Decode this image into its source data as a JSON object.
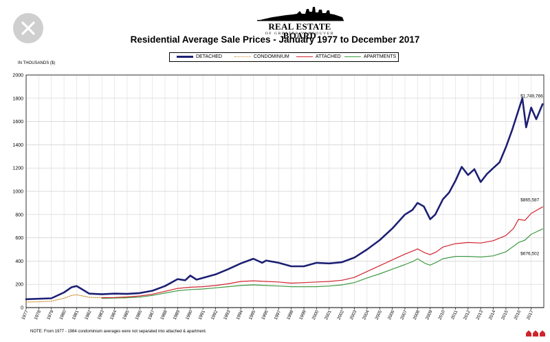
{
  "logo": {
    "name": "REAL ESTATE BOARD",
    "subtitle": "OF GREATER VANCOUVER"
  },
  "chart_data": {
    "type": "line",
    "title": "Residential Average Sale Prices  -  January 1977 to December 2017",
    "units_label": "IN THOUSANDS ($)",
    "note": "NOTE:  From 1977 - 1984 condominium averages were not separated into attached & apartment.",
    "ylim": [
      0,
      2000
    ],
    "yticks": [
      0,
      200,
      400,
      600,
      800,
      1000,
      1200,
      1400,
      1600,
      1800,
      2000
    ],
    "xlim": [
      1977,
      2018
    ],
    "xticks": [
      "1977",
      "1978",
      "1979",
      "1980",
      "1981",
      "1982",
      "1983",
      "1984",
      "1985",
      "1986",
      "1987",
      "1988",
      "1989",
      "1990",
      "1991",
      "1992",
      "1993",
      "1994",
      "1995",
      "1996",
      "1997",
      "1998",
      "1999",
      "2000",
      "2001",
      "2002",
      "2003",
      "2004",
      "2005",
      "2006",
      "2007",
      "2008",
      "2009",
      "2010",
      "2011",
      "2012",
      "2013",
      "2014",
      "2015",
      "2016",
      "2017"
    ],
    "grid": true,
    "legend_position": "top-center",
    "series": [
      {
        "name": "DETACHED",
        "color": "#1c1f73",
        "style": "solid-thick",
        "points": [
          [
            1977,
            72
          ],
          [
            1979,
            80
          ],
          [
            1980,
            130
          ],
          [
            1980.6,
            175
          ],
          [
            1981,
            185
          ],
          [
            1981.4,
            160
          ],
          [
            1982,
            120
          ],
          [
            1983,
            115
          ],
          [
            1984,
            120
          ],
          [
            1985,
            118
          ],
          [
            1986,
            125
          ],
          [
            1987,
            145
          ],
          [
            1988,
            185
          ],
          [
            1989,
            245
          ],
          [
            1989.6,
            235
          ],
          [
            1990,
            275
          ],
          [
            1990.5,
            240
          ],
          [
            1991,
            255
          ],
          [
            1992,
            285
          ],
          [
            1993,
            330
          ],
          [
            1994,
            380
          ],
          [
            1995,
            420
          ],
          [
            1995.7,
            385
          ],
          [
            1996,
            405
          ],
          [
            1997,
            385
          ],
          [
            1998,
            355
          ],
          [
            1999,
            355
          ],
          [
            2000,
            385
          ],
          [
            2001,
            380
          ],
          [
            2002,
            390
          ],
          [
            2003,
            430
          ],
          [
            2004,
            500
          ],
          [
            2005,
            580
          ],
          [
            2006,
            680
          ],
          [
            2007,
            800
          ],
          [
            2007.6,
            840
          ],
          [
            2008,
            900
          ],
          [
            2008.5,
            870
          ],
          [
            2009,
            760
          ],
          [
            2009.4,
            800
          ],
          [
            2010,
            930
          ],
          [
            2010.5,
            990
          ],
          [
            2011,
            1090
          ],
          [
            2011.5,
            1210
          ],
          [
            2012,
            1140
          ],
          [
            2012.5,
            1190
          ],
          [
            2013,
            1080
          ],
          [
            2013.5,
            1150
          ],
          [
            2014,
            1200
          ],
          [
            2014.5,
            1250
          ],
          [
            2015,
            1380
          ],
          [
            2015.5,
            1530
          ],
          [
            2016,
            1700
          ],
          [
            2016.3,
            1800
          ],
          [
            2016.6,
            1550
          ],
          [
            2017,
            1720
          ],
          [
            2017.4,
            1620
          ],
          [
            2017.9,
            1749.766
          ]
        ],
        "end_label": "$1,749,766"
      },
      {
        "name": "CONDOMINIUM",
        "color": "#c98a2b",
        "style": "dotted",
        "points": [
          [
            1977,
            48
          ],
          [
            1978,
            50
          ],
          [
            1979,
            55
          ],
          [
            1980,
            80
          ],
          [
            1980.6,
            105
          ],
          [
            1981,
            110
          ],
          [
            1981.5,
            100
          ],
          [
            1982,
            88
          ],
          [
            1983,
            85
          ],
          [
            1984,
            85
          ],
          [
            1984.9,
            82
          ]
        ]
      },
      {
        "name": "ATTACHED",
        "color": "#d0242e",
        "style": "solid",
        "points": [
          [
            1983,
            85
          ],
          [
            1984,
            87
          ],
          [
            1985,
            92
          ],
          [
            1986,
            100
          ],
          [
            1987,
            115
          ],
          [
            1988,
            140
          ],
          [
            1989,
            165
          ],
          [
            1990,
            175
          ],
          [
            1991,
            180
          ],
          [
            1992,
            190
          ],
          [
            1993,
            205
          ],
          [
            1994,
            225
          ],
          [
            1995,
            230
          ],
          [
            1996,
            225
          ],
          [
            1997,
            220
          ],
          [
            1998,
            210
          ],
          [
            1999,
            215
          ],
          [
            2000,
            220
          ],
          [
            2001,
            225
          ],
          [
            2002,
            235
          ],
          [
            2003,
            260
          ],
          [
            2004,
            310
          ],
          [
            2005,
            360
          ],
          [
            2006,
            410
          ],
          [
            2007,
            460
          ],
          [
            2007.7,
            490
          ],
          [
            2008,
            505
          ],
          [
            2008.6,
            470
          ],
          [
            2009,
            455
          ],
          [
            2009.5,
            480
          ],
          [
            2010,
            520
          ],
          [
            2011,
            550
          ],
          [
            2012,
            560
          ],
          [
            2013,
            555
          ],
          [
            2014,
            575
          ],
          [
            2015,
            620
          ],
          [
            2015.6,
            680
          ],
          [
            2016,
            760
          ],
          [
            2016.5,
            750
          ],
          [
            2017,
            810
          ],
          [
            2017.9,
            865.587
          ]
        ],
        "end_label": "$865,587"
      },
      {
        "name": "APARTMENTS",
        "color": "#3f9a42",
        "style": "solid",
        "points": [
          [
            1983,
            80
          ],
          [
            1984,
            82
          ],
          [
            1985,
            85
          ],
          [
            1986,
            90
          ],
          [
            1987,
            105
          ],
          [
            1988,
            125
          ],
          [
            1989,
            145
          ],
          [
            1990,
            155
          ],
          [
            1991,
            160
          ],
          [
            1992,
            170
          ],
          [
            1993,
            180
          ],
          [
            1994,
            190
          ],
          [
            1995,
            195
          ],
          [
            1996,
            190
          ],
          [
            1997,
            185
          ],
          [
            1998,
            180
          ],
          [
            1999,
            180
          ],
          [
            2000,
            180
          ],
          [
            2001,
            185
          ],
          [
            2002,
            195
          ],
          [
            2003,
            215
          ],
          [
            2004,
            255
          ],
          [
            2005,
            290
          ],
          [
            2006,
            330
          ],
          [
            2007,
            370
          ],
          [
            2007.7,
            400
          ],
          [
            2008,
            420
          ],
          [
            2008.6,
            380
          ],
          [
            2009,
            365
          ],
          [
            2009.5,
            390
          ],
          [
            2010,
            420
          ],
          [
            2011,
            440
          ],
          [
            2012,
            440
          ],
          [
            2013,
            435
          ],
          [
            2014,
            445
          ],
          [
            2015,
            480
          ],
          [
            2016,
            560
          ],
          [
            2016.5,
            580
          ],
          [
            2017,
            630
          ],
          [
            2017.9,
            676.502
          ]
        ],
        "end_label": "$676,502"
      }
    ]
  }
}
